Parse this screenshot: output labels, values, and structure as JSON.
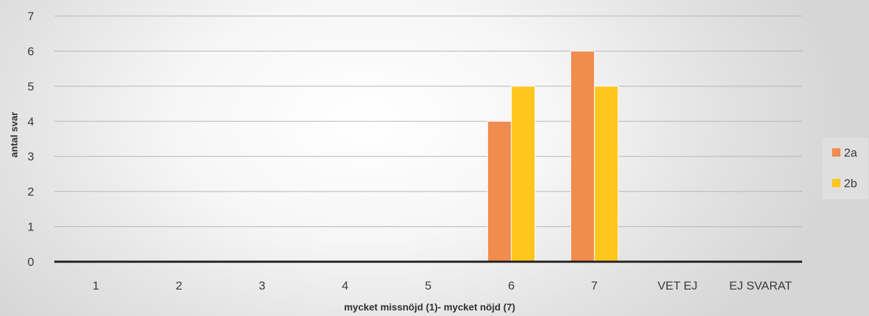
{
  "chart_data": {
    "type": "bar",
    "title": "",
    "xlabel": "mycket missnöjd (1)- mycket nöjd (7)",
    "ylabel": "antal svar",
    "categories": [
      "1",
      "2",
      "3",
      "4",
      "5",
      "6",
      "7",
      "VET EJ",
      "EJ SVARAT"
    ],
    "series": [
      {
        "name": "2a",
        "color": "#f08c4e",
        "values": [
          0,
          0,
          0,
          0,
          0,
          4,
          6,
          0,
          0
        ]
      },
      {
        "name": "2b",
        "color": "#ffc61e",
        "values": [
          0,
          0,
          0,
          0,
          0,
          5,
          5,
          0,
          0
        ]
      }
    ],
    "ylim": [
      0,
      7
    ],
    "yticks": [
      0,
      1,
      2,
      3,
      4,
      5,
      6,
      7
    ],
    "grid": true,
    "legend_position": "right"
  }
}
